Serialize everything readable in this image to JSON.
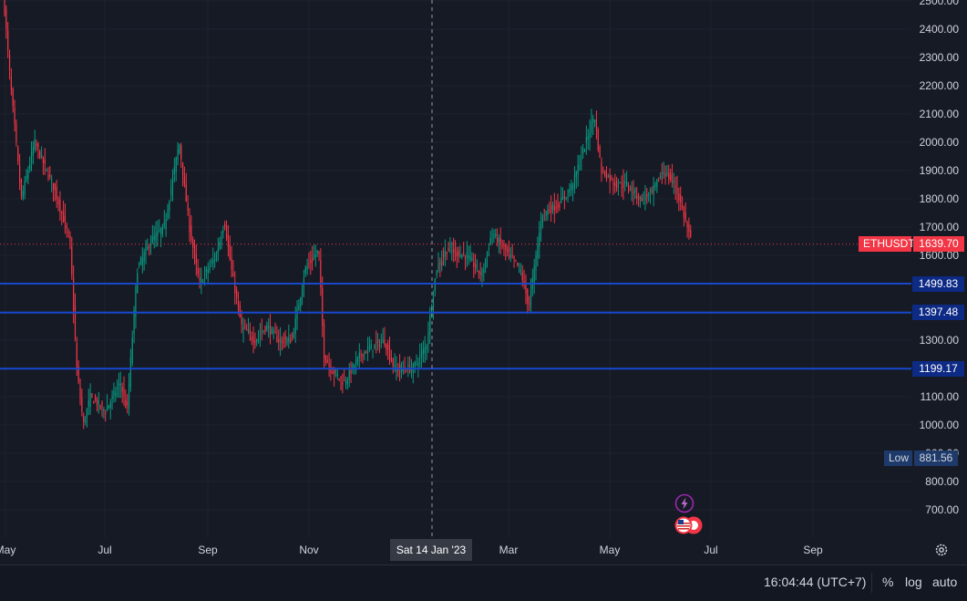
{
  "symbol": "ETHUSDT",
  "last_price": "1639.70",
  "horizontal_levels": [
    {
      "price": 1499.83,
      "label": "1499.83"
    },
    {
      "price": 1397.48,
      "label": "1397.48"
    },
    {
      "price": 1199.17,
      "label": "1199.17"
    }
  ],
  "low": {
    "label": "Low",
    "value": "881.56"
  },
  "crosshair": {
    "date_label": "Sat 14 Jan '23"
  },
  "time_axis": [
    "May",
    "Jul",
    "Sep",
    "Nov",
    "Mar",
    "May",
    "Jul",
    "Sep"
  ],
  "bottom_bar": {
    "clock": "16:04:44 (UTC+7)",
    "percent": "%",
    "log": "log",
    "auto": "auto"
  },
  "colors": {
    "up": "#089981",
    "down": "#f23645",
    "level_line": "#1848cc",
    "background": "#161a25",
    "grid": "#1f2330"
  },
  "icons": [
    "lightning-icon",
    "us-flag-icon",
    "settings-icon"
  ],
  "chart_data": {
    "type": "candlestick",
    "symbol": "ETHUSDT",
    "y_axis": {
      "ylim": [
        610,
        2530
      ],
      "ticks": [
        2500,
        2400,
        2300,
        2200,
        2100,
        2000,
        1900,
        1800,
        1700,
        1600,
        1300,
        1200,
        1100,
        1000,
        900,
        800,
        700
      ]
    },
    "x_axis": {
      "labels": [
        "May",
        "Jul",
        "Sep",
        "Nov",
        "Mar",
        "May",
        "Jul",
        "Sep"
      ]
    },
    "grid": true,
    "price_path": [
      [
        "2022-05-01",
        2550
      ],
      [
        "2022-05-05",
        2250
      ],
      [
        "2022-05-12",
        1800
      ],
      [
        "2022-05-20",
        2000
      ],
      [
        "2022-06-01",
        1830
      ],
      [
        "2022-06-10",
        1650
      ],
      [
        "2022-06-14",
        1200
      ],
      [
        "2022-06-18",
        1000
      ],
      [
        "2022-06-22",
        1100
      ],
      [
        "2022-07-01",
        1050
      ],
      [
        "2022-07-10",
        1150
      ],
      [
        "2022-07-14",
        1050
      ],
      [
        "2022-07-20",
        1550
      ],
      [
        "2022-07-28",
        1650
      ],
      [
        "2022-08-05",
        1700
      ],
      [
        "2022-08-14",
        2000
      ],
      [
        "2022-08-20",
        1700
      ],
      [
        "2022-08-26",
        1500
      ],
      [
        "2022-09-05",
        1600
      ],
      [
        "2022-09-10",
        1720
      ],
      [
        "2022-09-14",
        1550
      ],
      [
        "2022-09-20",
        1350
      ],
      [
        "2022-09-28",
        1300
      ],
      [
        "2022-10-05",
        1350
      ],
      [
        "2022-10-12",
        1300
      ],
      [
        "2022-10-20",
        1300
      ],
      [
        "2022-10-28",
        1550
      ],
      [
        "2022-11-05",
        1620
      ],
      [
        "2022-11-08",
        1250
      ],
      [
        "2022-11-12",
        1200
      ],
      [
        "2022-11-20",
        1150
      ],
      [
        "2022-11-30",
        1250
      ],
      [
        "2022-12-05",
        1270
      ],
      [
        "2022-12-14",
        1300
      ],
      [
        "2022-12-20",
        1200
      ],
      [
        "2022-12-31",
        1200
      ],
      [
        "2023-01-08",
        1280
      ],
      [
        "2023-01-14",
        1550
      ],
      [
        "2023-01-20",
        1620
      ],
      [
        "2023-02-01",
        1600
      ],
      [
        "2023-02-10",
        1530
      ],
      [
        "2023-02-16",
        1680
      ],
      [
        "2023-02-24",
        1620
      ],
      [
        "2023-03-05",
        1550
      ],
      [
        "2023-03-10",
        1420
      ],
      [
        "2023-03-18",
        1750
      ],
      [
        "2023-03-28",
        1780
      ],
      [
        "2023-04-05",
        1850
      ],
      [
        "2023-04-13",
        2000
      ],
      [
        "2023-04-18",
        2100
      ],
      [
        "2023-04-22",
        1900
      ],
      [
        "2023-05-01",
        1850
      ],
      [
        "2023-05-08",
        1850
      ],
      [
        "2023-05-15",
        1800
      ],
      [
        "2023-05-22",
        1820
      ],
      [
        "2023-05-29",
        1900
      ],
      [
        "2023-06-05",
        1850
      ],
      [
        "2023-06-10",
        1750
      ],
      [
        "2023-06-15",
        1640
      ]
    ]
  }
}
